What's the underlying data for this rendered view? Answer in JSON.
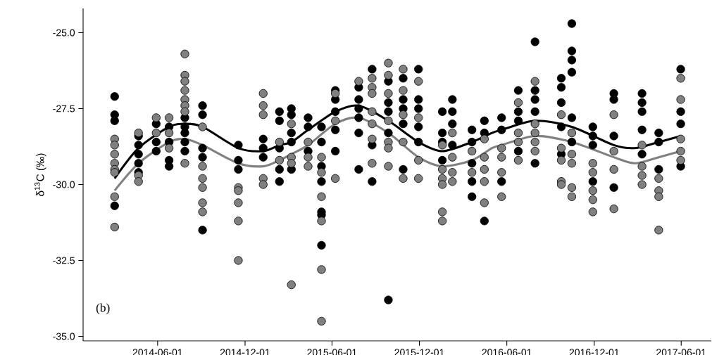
{
  "chart_data": {
    "type": "scatter",
    "ylabel": "δ$^{13}$C (‰)",
    "annotations": [
      "(b)"
    ],
    "marker": "circle",
    "xlim": [
      "2013-12-27",
      "2017-08-03"
    ],
    "xticks": [
      "2014-06-01",
      "2014-12-01",
      "2015-06-01",
      "2015-12-01",
      "2016-06-01",
      "2016-12-01",
      "2017-06-01"
    ],
    "ylim": [
      -35.15,
      -24.2
    ],
    "yticks": [
      {
        "value": -35,
        "label": "-35.0"
      },
      {
        "value": -32.5,
        "label": "-32.5"
      },
      {
        "value": -30,
        "label": "-30.0"
      },
      {
        "value": -27.5,
        "label": "-27.5"
      },
      {
        "value": -25,
        "label": "-25.0"
      }
    ],
    "series": [
      {
        "color": "#000000",
        "x": [
          "2014-03-03",
          "2014-03-03",
          "2014-03-03",
          "2014-03-03",
          "2014-04-22",
          "2014-04-22",
          "2014-04-22",
          "2014-04-22",
          "2014-04-22",
          "2014-05-29",
          "2014-05-29",
          "2014-05-29",
          "2014-06-25",
          "2014-06-25",
          "2014-06-25",
          "2014-06-25",
          "2014-07-28",
          "2014-07-28",
          "2014-07-28",
          "2014-07-28",
          "2014-07-28",
          "2014-09-03",
          "2014-09-03",
          "2014-09-03",
          "2014-09-03",
          "2014-09-03",
          "2014-11-17",
          "2014-11-17",
          "2014-11-17",
          "2015-01-08",
          "2015-01-08",
          "2015-01-08",
          "2015-02-11",
          "2015-02-11",
          "2015-02-11",
          "2015-02-11",
          "2015-02-11",
          "2015-03-08",
          "2015-03-08",
          "2015-03-08",
          "2015-03-08",
          "2015-03-08",
          "2015-04-12",
          "2015-04-12",
          "2015-04-12",
          "2015-05-10",
          "2015-05-10",
          "2015-05-10",
          "2015-05-10",
          "2015-05-10",
          "2015-05-10",
          "2015-05-10",
          "2015-06-08",
          "2015-06-08",
          "2015-06-08",
          "2015-06-08",
          "2015-06-08",
          "2015-07-27",
          "2015-07-27",
          "2015-07-27",
          "2015-07-27",
          "2015-07-27",
          "2015-07-27",
          "2015-08-24",
          "2015-08-24",
          "2015-08-24",
          "2015-09-27",
          "2015-09-27",
          "2015-09-27",
          "2015-09-27",
          "2015-09-27",
          "2015-10-28",
          "2015-10-28",
          "2015-10-28",
          "2015-10-28",
          "2015-10-28",
          "2015-11-29",
          "2015-11-29",
          "2015-11-29",
          "2015-11-29",
          "2015-11-29",
          "2016-01-18",
          "2016-01-18",
          "2016-01-18",
          "2016-01-18",
          "2016-02-08",
          "2016-02-08",
          "2016-02-08",
          "2016-02-08",
          "2016-03-20",
          "2016-03-20",
          "2016-03-20",
          "2016-03-20",
          "2016-03-20",
          "2016-04-15",
          "2016-04-15",
          "2016-04-15",
          "2016-05-21",
          "2016-05-21",
          "2016-05-21",
          "2016-06-25",
          "2016-06-25",
          "2016-06-25",
          "2016-06-25",
          "2016-07-30",
          "2016-07-30",
          "2016-07-30",
          "2016-07-30",
          "2016-07-30",
          "2016-09-23",
          "2016-09-23",
          "2016-09-23",
          "2016-09-23",
          "2016-09-23",
          "2016-10-15",
          "2016-10-15",
          "2016-10-15",
          "2016-10-15",
          "2016-10-15",
          "2016-10-15",
          "2016-11-28",
          "2016-11-28",
          "2016-11-28",
          "2016-11-28",
          "2017-01-11",
          "2017-01-11",
          "2017-01-11",
          "2017-01-11",
          "2017-03-11",
          "2017-03-11",
          "2017-03-11",
          "2017-03-11",
          "2017-03-11",
          "2017-04-15",
          "2017-04-15",
          "2017-04-15",
          "2017-05-31",
          "2017-05-31",
          "2017-05-31",
          "2017-05-31"
        ],
        "values": [
          -27.1,
          -27.7,
          -27.9,
          -30.7,
          -28.4,
          -28.7,
          -29.0,
          -29.3,
          -29.6,
          -28.0,
          -28.6,
          -28.9,
          -28.1,
          -28.6,
          -29.2,
          -29.4,
          -27.8,
          -28.1,
          -28.3,
          -28.6,
          -28.9,
          -27.4,
          -27.7,
          -28.8,
          -29.1,
          -31.5,
          -28.7,
          -29.2,
          -29.5,
          -28.5,
          -28.8,
          -29.1,
          -27.6,
          -27.9,
          -28.8,
          -29.5,
          -29.9,
          -27.5,
          -27.7,
          -28.3,
          -28.6,
          -29.5,
          -27.8,
          -28.1,
          -28.9,
          -28.1,
          -28.6,
          -29.4,
          -29.9,
          -30.9,
          -31.0,
          -32.0,
          -26.9,
          -27.2,
          -27.6,
          -28.2,
          -28.9,
          -26.8,
          -27.2,
          -27.5,
          -27.8,
          -28.3,
          -29.5,
          -26.2,
          -28.7,
          -29.9,
          -26.6,
          -27.3,
          -27.6,
          -28.3,
          -33.8,
          -26.5,
          -27.2,
          -27.5,
          -28.0,
          -29.5,
          -26.2,
          -27.2,
          -27.5,
          -28.1,
          -28.6,
          -27.6,
          -28.3,
          -28.6,
          -29.2,
          -27.2,
          -27.6,
          -28.0,
          -28.7,
          -28.2,
          -28.6,
          -29.3,
          -29.9,
          -30.4,
          -27.9,
          -28.3,
          -31.2,
          -27.8,
          -28.2,
          -29.9,
          -26.9,
          -27.6,
          -27.9,
          -28.9,
          -25.3,
          -26.9,
          -27.2,
          -27.6,
          -29.3,
          -26.5,
          -26.8,
          -27.3,
          -28.1,
          -29.0,
          -24.7,
          -25.6,
          -25.9,
          -26.3,
          -27.8,
          -28.6,
          -28.1,
          -28.4,
          -28.7,
          -29.9,
          -27.0,
          -27.2,
          -28.4,
          -30.1,
          -27.0,
          -27.3,
          -27.6,
          -28.2,
          -29.0,
          -28.3,
          -28.6,
          -29.5,
          -26.2,
          -27.6,
          -28.0,
          -29.4
        ]
      },
      {
        "color": "#808080",
        "x": [
          "2014-03-03",
          "2014-03-03",
          "2014-03-03",
          "2014-03-03",
          "2014-03-03",
          "2014-03-03",
          "2014-03-03",
          "2014-03-03",
          "2014-04-22",
          "2014-04-22",
          "2014-04-22",
          "2014-05-29",
          "2014-05-29",
          "2014-06-25",
          "2014-06-25",
          "2014-06-25",
          "2014-07-28",
          "2014-07-28",
          "2014-07-28",
          "2014-07-28",
          "2014-07-28",
          "2014-07-28",
          "2014-07-28",
          "2014-07-28",
          "2014-09-03",
          "2014-09-03",
          "2014-09-03",
          "2014-09-03",
          "2014-09-03",
          "2014-09-03",
          "2014-11-17",
          "2014-11-17",
          "2014-11-17",
          "2014-11-17",
          "2014-11-17",
          "2015-01-08",
          "2015-01-08",
          "2015-01-08",
          "2015-01-08",
          "2015-01-08",
          "2015-02-11",
          "2015-02-11",
          "2015-03-08",
          "2015-03-08",
          "2015-03-08",
          "2015-03-08",
          "2015-04-12",
          "2015-04-12",
          "2015-04-12",
          "2015-05-10",
          "2015-05-10",
          "2015-05-10",
          "2015-05-10",
          "2015-05-10",
          "2015-05-10",
          "2015-06-08",
          "2015-06-08",
          "2015-06-08",
          "2015-07-27",
          "2015-08-24",
          "2015-08-24",
          "2015-08-24",
          "2015-08-24",
          "2015-08-24",
          "2015-08-24",
          "2015-08-24",
          "2015-09-27",
          "2015-09-27",
          "2015-09-27",
          "2015-09-27",
          "2015-09-27",
          "2015-09-27",
          "2015-09-27",
          "2015-10-28",
          "2015-10-28",
          "2015-10-28",
          "2015-10-28",
          "2015-10-28",
          "2015-11-29",
          "2015-11-29",
          "2015-11-29",
          "2015-11-29",
          "2016-01-18",
          "2016-01-18",
          "2016-01-18",
          "2016-01-18",
          "2016-01-18",
          "2016-01-18",
          "2016-02-08",
          "2016-02-08",
          "2016-02-08",
          "2016-02-08",
          "2016-03-20",
          "2016-03-20",
          "2016-04-15",
          "2016-04-15",
          "2016-04-15",
          "2016-04-15",
          "2016-04-15",
          "2016-05-21",
          "2016-05-21",
          "2016-05-21",
          "2016-05-21",
          "2016-06-25",
          "2016-06-25",
          "2016-06-25",
          "2016-06-25",
          "2016-07-30",
          "2016-07-30",
          "2016-07-30",
          "2016-07-30",
          "2016-07-30",
          "2016-09-23",
          "2016-09-23",
          "2016-09-23",
          "2016-09-23",
          "2016-09-23",
          "2016-10-15",
          "2016-10-15",
          "2016-10-15",
          "2016-10-15",
          "2016-10-15",
          "2016-11-28",
          "2016-11-28",
          "2016-11-28",
          "2016-11-28",
          "2016-11-28",
          "2017-01-11",
          "2017-01-11",
          "2017-01-11",
          "2017-01-11",
          "2017-03-11",
          "2017-03-11",
          "2017-03-11",
          "2017-03-11",
          "2017-04-15",
          "2017-04-15",
          "2017-04-15",
          "2017-04-15",
          "2017-05-31",
          "2017-05-31",
          "2017-05-31",
          "2017-05-31",
          "2017-05-31"
        ],
        "values": [
          -28.5,
          -28.7,
          -29.0,
          -29.3,
          -29.5,
          -29.6,
          -30.4,
          -31.4,
          -28.3,
          -29.7,
          -29.9,
          -27.8,
          -28.3,
          -27.8,
          -28.3,
          -28.8,
          -25.7,
          -26.4,
          -26.6,
          -26.9,
          -27.2,
          -27.4,
          -27.6,
          -29.3,
          -28.1,
          -29.4,
          -29.8,
          -30.1,
          -30.6,
          -30.9,
          -30.1,
          -30.2,
          -30.6,
          -31.2,
          -32.5,
          -27.0,
          -27.4,
          -27.7,
          -29.8,
          -30.0,
          -28.6,
          -29.2,
          -28.0,
          -29.1,
          -29.3,
          -33.3,
          -28.6,
          -29.1,
          -29.4,
          -29.1,
          -29.6,
          -30.4,
          -31.2,
          -32.8,
          -34.5,
          -27.0,
          -27.9,
          -29.8,
          -26.6,
          -26.5,
          -26.8,
          -27.0,
          -27.6,
          -28.0,
          -28.5,
          -29.3,
          -26.0,
          -26.4,
          -27.0,
          -27.9,
          -28.6,
          -28.8,
          -29.4,
          -26.2,
          -26.9,
          -27.7,
          -28.6,
          -29.8,
          -26.6,
          -27.8,
          -29.2,
          -29.8,
          -28.7,
          -29.5,
          -29.8,
          -30.0,
          -30.9,
          -31.2,
          -28.3,
          -29.1,
          -29.6,
          -29.9,
          -28.9,
          -29.6,
          -28.5,
          -29.1,
          -29.5,
          -29.9,
          -30.6,
          -28.8,
          -29.1,
          -29.6,
          -30.4,
          -27.3,
          -28.3,
          -28.6,
          -29.2,
          -26.6,
          -28.0,
          -28.3,
          -28.6,
          -28.9,
          -27.7,
          -28.8,
          -29.2,
          -29.9,
          -30.0,
          -28.3,
          -29.0,
          -29.3,
          -30.1,
          -30.4,
          -29.3,
          -29.6,
          -30.2,
          -30.5,
          -30.9,
          -27.7,
          -28.9,
          -29.5,
          -30.8,
          -28.7,
          -29.4,
          -29.7,
          -30.0,
          -29.8,
          -30.2,
          -30.4,
          -31.5,
          -26.5,
          -27.2,
          -28.5,
          -28.9,
          -29.2
        ]
      },
      {
        "type": "line",
        "marker": "none",
        "color": "#000000",
        "x": [
          "2014-03-03",
          "2014-04-22",
          "2014-06-25",
          "2014-07-28",
          "2014-09-03",
          "2014-11-17",
          "2015-01-08",
          "2015-02-11",
          "2015-03-08",
          "2015-04-12",
          "2015-06-08",
          "2015-07-27",
          "2015-09-27",
          "2015-11-29",
          "2016-01-18",
          "2016-03-20",
          "2016-05-01",
          "2016-05-21",
          "2016-07-30",
          "2016-10-15",
          "2017-01-11",
          "2017-02-24",
          "2017-04-15",
          "2017-05-31"
        ],
        "values": [
          -29.8,
          -28.8,
          -28.1,
          -28.0,
          -28.1,
          -28.8,
          -28.9,
          -28.7,
          -28.6,
          -28.2,
          -27.6,
          -27.4,
          -27.9,
          -28.6,
          -28.9,
          -28.6,
          -28.3,
          -28.2,
          -27.9,
          -28.1,
          -28.7,
          -28.8,
          -28.6,
          -28.4
        ]
      },
      {
        "type": "line",
        "marker": "none",
        "color": "#808080",
        "x": [
          "2014-03-03",
          "2014-04-22",
          "2014-06-25",
          "2014-07-28",
          "2014-09-03",
          "2014-11-17",
          "2015-01-08",
          "2015-02-11",
          "2015-03-08",
          "2015-04-12",
          "2015-06-08",
          "2015-07-27",
          "2015-09-27",
          "2015-11-29",
          "2016-01-18",
          "2016-03-20",
          "2016-05-01",
          "2016-05-21",
          "2016-07-30",
          "2016-10-15",
          "2017-01-11",
          "2017-02-24",
          "2017-04-15",
          "2017-05-31"
        ],
        "values": [
          -30.2,
          -29.3,
          -28.6,
          -28.5,
          -28.7,
          -29.3,
          -29.4,
          -29.2,
          -29.0,
          -28.7,
          -28.0,
          -27.8,
          -28.3,
          -29.1,
          -29.4,
          -29.2,
          -28.8,
          -28.7,
          -28.4,
          -28.6,
          -29.1,
          -29.3,
          -29.1,
          -28.9
        ]
      }
    ]
  }
}
